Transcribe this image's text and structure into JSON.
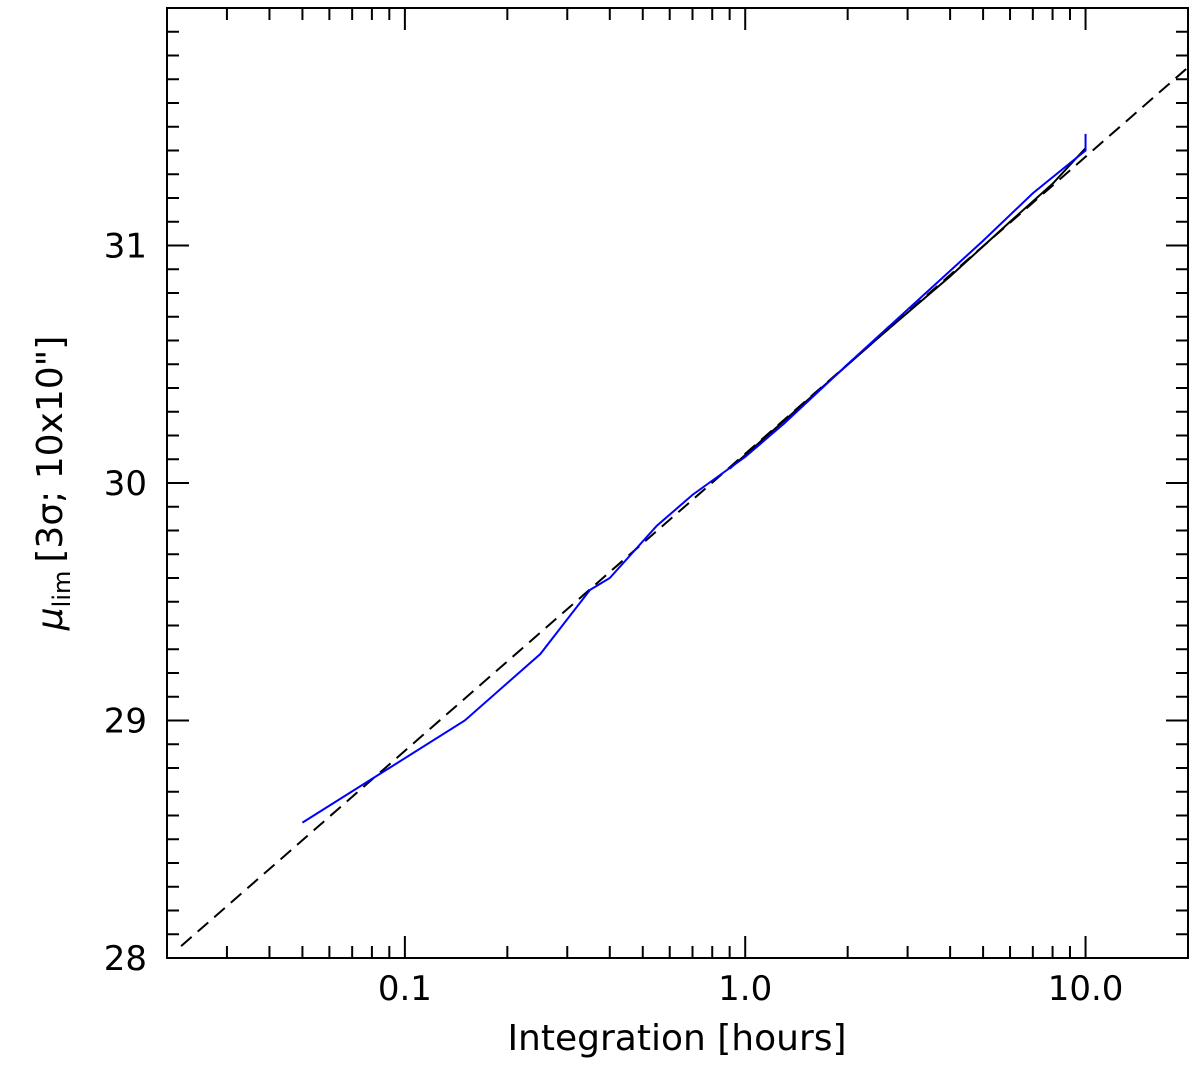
{
  "chart_data": {
    "type": "line",
    "x_label": "Integration [hours]",
    "y_label": {
      "symbol": "μ",
      "subscript": "lim",
      "text": "[3σ; 10x10\"]"
    },
    "x_scale": "log",
    "xlim": [
      0.02,
      20
    ],
    "ylim": [
      28,
      32
    ],
    "xticks": [
      0.1,
      {
        "value": 1,
        "label": "1.0"
      },
      {
        "value": 10,
        "label": "10.0"
      }
    ],
    "xminorticks": [
      0.02,
      0.03,
      0.04,
      0.05,
      0.06,
      0.07,
      0.08,
      0.09,
      0.2,
      0.3,
      0.4,
      0.5,
      0.6,
      0.7,
      0.8,
      0.9,
      2,
      3,
      4,
      5,
      6,
      7,
      8,
      9,
      20
    ],
    "yticks": [
      28,
      29,
      30,
      31
    ],
    "yminorticks": [
      28.1,
      28.2,
      28.3,
      28.4,
      28.5,
      28.6,
      28.7,
      28.8,
      28.9,
      29.1,
      29.2,
      29.3,
      29.4,
      29.5,
      29.6,
      29.7,
      29.8,
      29.9,
      30.1,
      30.2,
      30.3,
      30.4,
      30.5,
      30.6,
      30.7,
      30.8,
      30.9,
      31.1,
      31.2,
      31.3,
      31.4,
      31.5,
      31.6,
      31.7,
      31.8,
      31.9
    ],
    "grid": false,
    "series": [
      {
        "color": "#000000",
        "dash": "dashed",
        "x": [
          0.022,
          20
        ],
        "values": [
          28.05,
          31.75
        ]
      },
      {
        "color": "#000000",
        "dash": "solid",
        "x": [
          0.9,
          1.5,
          2.5,
          4,
          6,
          8,
          10
        ],
        "values": [
          30.06,
          30.34,
          30.62,
          30.87,
          31.1,
          31.26,
          31.41
        ]
      },
      {
        "color": "#0000ff",
        "dash": "solid",
        "x": [
          0.05,
          0.09,
          0.15,
          0.25,
          0.35,
          0.4,
          0.55,
          0.7,
          1.0,
          1.3,
          2,
          3,
          5,
          7,
          10,
          10
        ],
        "values": [
          28.57,
          28.8,
          29.0,
          29.28,
          29.55,
          29.6,
          29.82,
          29.95,
          30.11,
          30.25,
          30.5,
          30.73,
          31.02,
          31.22,
          31.4,
          31.47
        ]
      }
    ]
  }
}
